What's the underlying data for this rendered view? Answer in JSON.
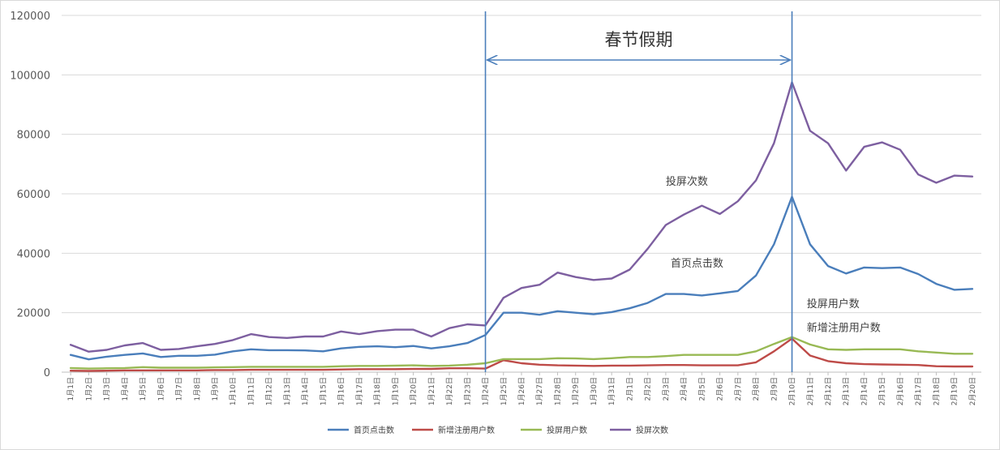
{
  "chart_data": {
    "type": "line",
    "title": "",
    "xlabel": "",
    "ylabel": "",
    "ylim": [
      0,
      120000
    ],
    "yticks": [
      0,
      20000,
      40000,
      60000,
      80000,
      100000,
      120000
    ],
    "ytick_labels": [
      "0",
      "20000",
      "40000",
      "60000",
      "80000",
      "100000",
      "120000"
    ],
    "grid": "horizontal",
    "legend_position": "bottom",
    "categories": [
      "1月1日",
      "1月2日",
      "1月3日",
      "1月4日",
      "1月5日",
      "1月6日",
      "1月7日",
      "1月8日",
      "1月9日",
      "1月10日",
      "1月11日",
      "1月12日",
      "1月13日",
      "1月14日",
      "1月15日",
      "1月16日",
      "1月17日",
      "1月18日",
      "1月19日",
      "1月20日",
      "1月21日",
      "1月22日",
      "1月23日",
      "1月24日",
      "1月25日",
      "1月26日",
      "1月27日",
      "1月28日",
      "1月29日",
      "1月30日",
      "1月31日",
      "2月1日",
      "2月2日",
      "2月3日",
      "2月4日",
      "2月5日",
      "2月6日",
      "2月7日",
      "2月8日",
      "2月9日",
      "2月10日",
      "2月11日",
      "2月12日",
      "2月13日",
      "2月14日",
      "2月15日",
      "2月16日",
      "2月17日",
      "2月18日",
      "2月19日",
      "2月20日"
    ],
    "series": [
      {
        "name": "首页点击数",
        "color": "#4a7ebb",
        "values": [
          5800,
          4300,
          5200,
          5800,
          6300,
          5100,
          5500,
          5500,
          5900,
          7000,
          7700,
          7400,
          7400,
          7300,
          7000,
          8000,
          8500,
          8700,
          8400,
          8800,
          8000,
          8700,
          9800,
          12500,
          20000,
          20000,
          19300,
          20500,
          20000,
          19500,
          20200,
          21500,
          23300,
          26300,
          26300,
          25800,
          26500,
          27300,
          32500,
          43000,
          59000,
          43000,
          35700,
          33200,
          35200,
          35000,
          35200,
          33000,
          29700,
          27700,
          28000
        ]
      },
      {
        "name": "新增注册用户数",
        "color": "#be4b48",
        "values": [
          500,
          400,
          500,
          600,
          600,
          600,
          600,
          600,
          700,
          700,
          800,
          800,
          800,
          800,
          800,
          900,
          1000,
          1000,
          1000,
          1100,
          1100,
          1300,
          1300,
          1200,
          4000,
          3000,
          2500,
          2300,
          2200,
          2100,
          2200,
          2200,
          2300,
          2400,
          2400,
          2300,
          2300,
          2300,
          3300,
          7000,
          11300,
          5600,
          3700,
          3000,
          2700,
          2600,
          2500,
          2400,
          2000,
          1900,
          1900
        ]
      },
      {
        "name": "投屏用户数",
        "color": "#98b954",
        "values": [
          1400,
          1200,
          1300,
          1400,
          1700,
          1500,
          1500,
          1500,
          1600,
          1700,
          1800,
          1800,
          1800,
          1800,
          1800,
          2000,
          2100,
          2100,
          2200,
          2300,
          2100,
          2200,
          2500,
          3000,
          4400,
          4400,
          4400,
          4700,
          4600,
          4400,
          4700,
          5100,
          5100,
          5400,
          5800,
          5800,
          5800,
          5800,
          7000,
          9500,
          11800,
          9300,
          7700,
          7500,
          7700,
          7700,
          7700,
          7000,
          6600,
          6200,
          6200
        ]
      },
      {
        "name": "投屏次数",
        "color": "#7d5fa0",
        "values": [
          9200,
          6900,
          7500,
          9000,
          9800,
          7500,
          7800,
          8700,
          9500,
          10800,
          12800,
          11800,
          11500,
          12000,
          12000,
          13700,
          12800,
          13800,
          14300,
          14300,
          12000,
          14800,
          16100,
          15700,
          25000,
          28300,
          29400,
          33500,
          32000,
          31000,
          31500,
          34500,
          41500,
          49500,
          53000,
          56000,
          53200,
          57500,
          64500,
          77000,
          97500,
          81200,
          77000,
          67800,
          75800,
          77300,
          74800,
          66500,
          63700,
          66100,
          65800
        ]
      }
    ],
    "annotations": {
      "holiday_label": "春节假期",
      "holiday_start": "1月24日",
      "holiday_end": "2月10日",
      "series_labels": [
        {
          "text": "投屏次数",
          "series": "投屏次数"
        },
        {
          "text": "首页点击数",
          "series": "首页点击数"
        },
        {
          "text": "投屏用户数",
          "series": "投屏用户数"
        },
        {
          "text": "新增注册用户数",
          "series": "新增注册用户数"
        }
      ]
    }
  }
}
